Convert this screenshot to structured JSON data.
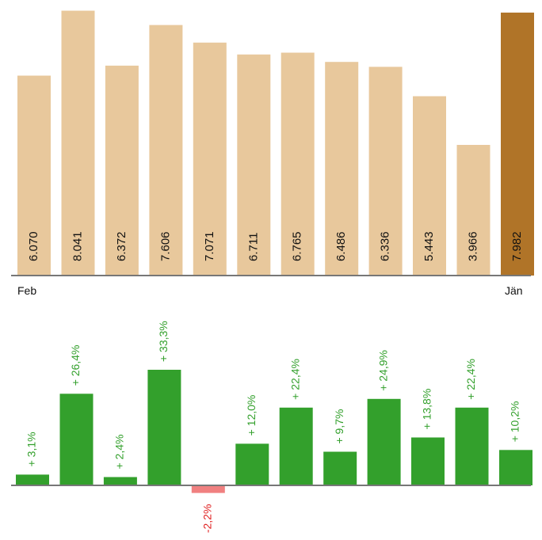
{
  "chart_data": [
    {
      "type": "bar",
      "categories": [
        "Feb",
        "",
        "",
        "",
        "",
        "",
        "",
        "",
        "",
        "",
        "",
        "Jän"
      ],
      "values": [
        6070,
        8041,
        6372,
        7606,
        7071,
        6711,
        6765,
        6486,
        6336,
        5443,
        3966,
        7982
      ],
      "value_labels": [
        "6.070",
        "8.041",
        "6.372",
        "7.606",
        "7.071",
        "6.711",
        "6.765",
        "6.486",
        "6.336",
        "5.443",
        "3.966",
        "7.982"
      ],
      "ylim": [
        0,
        8100
      ],
      "grid": false,
      "colors": {
        "default": "#e8c89c",
        "highlight": "#b07428"
      },
      "highlight_index": 11
    },
    {
      "type": "bar",
      "values": [
        3.1,
        26.4,
        2.4,
        33.3,
        -2.2,
        12.0,
        22.4,
        9.7,
        24.9,
        13.8,
        22.4,
        10.2
      ],
      "value_labels": [
        "+ 3,1%",
        "+ 26,4%",
        "+ 2,4%",
        "+ 33,3%",
        "-2,2%",
        "+ 12,0%",
        "+ 22,4%",
        "+ 9,7%",
        "+ 24,9%",
        "+ 13,8%",
        "+ 22,4%",
        "+ 10,2%"
      ],
      "grid": false,
      "colors": {
        "positive": "#33a02c",
        "negative": "#f08080",
        "positive_text": "#33a02c",
        "negative_text": "#e02020"
      }
    }
  ],
  "x_labels": {
    "first": "Feb",
    "last": "Jän"
  }
}
